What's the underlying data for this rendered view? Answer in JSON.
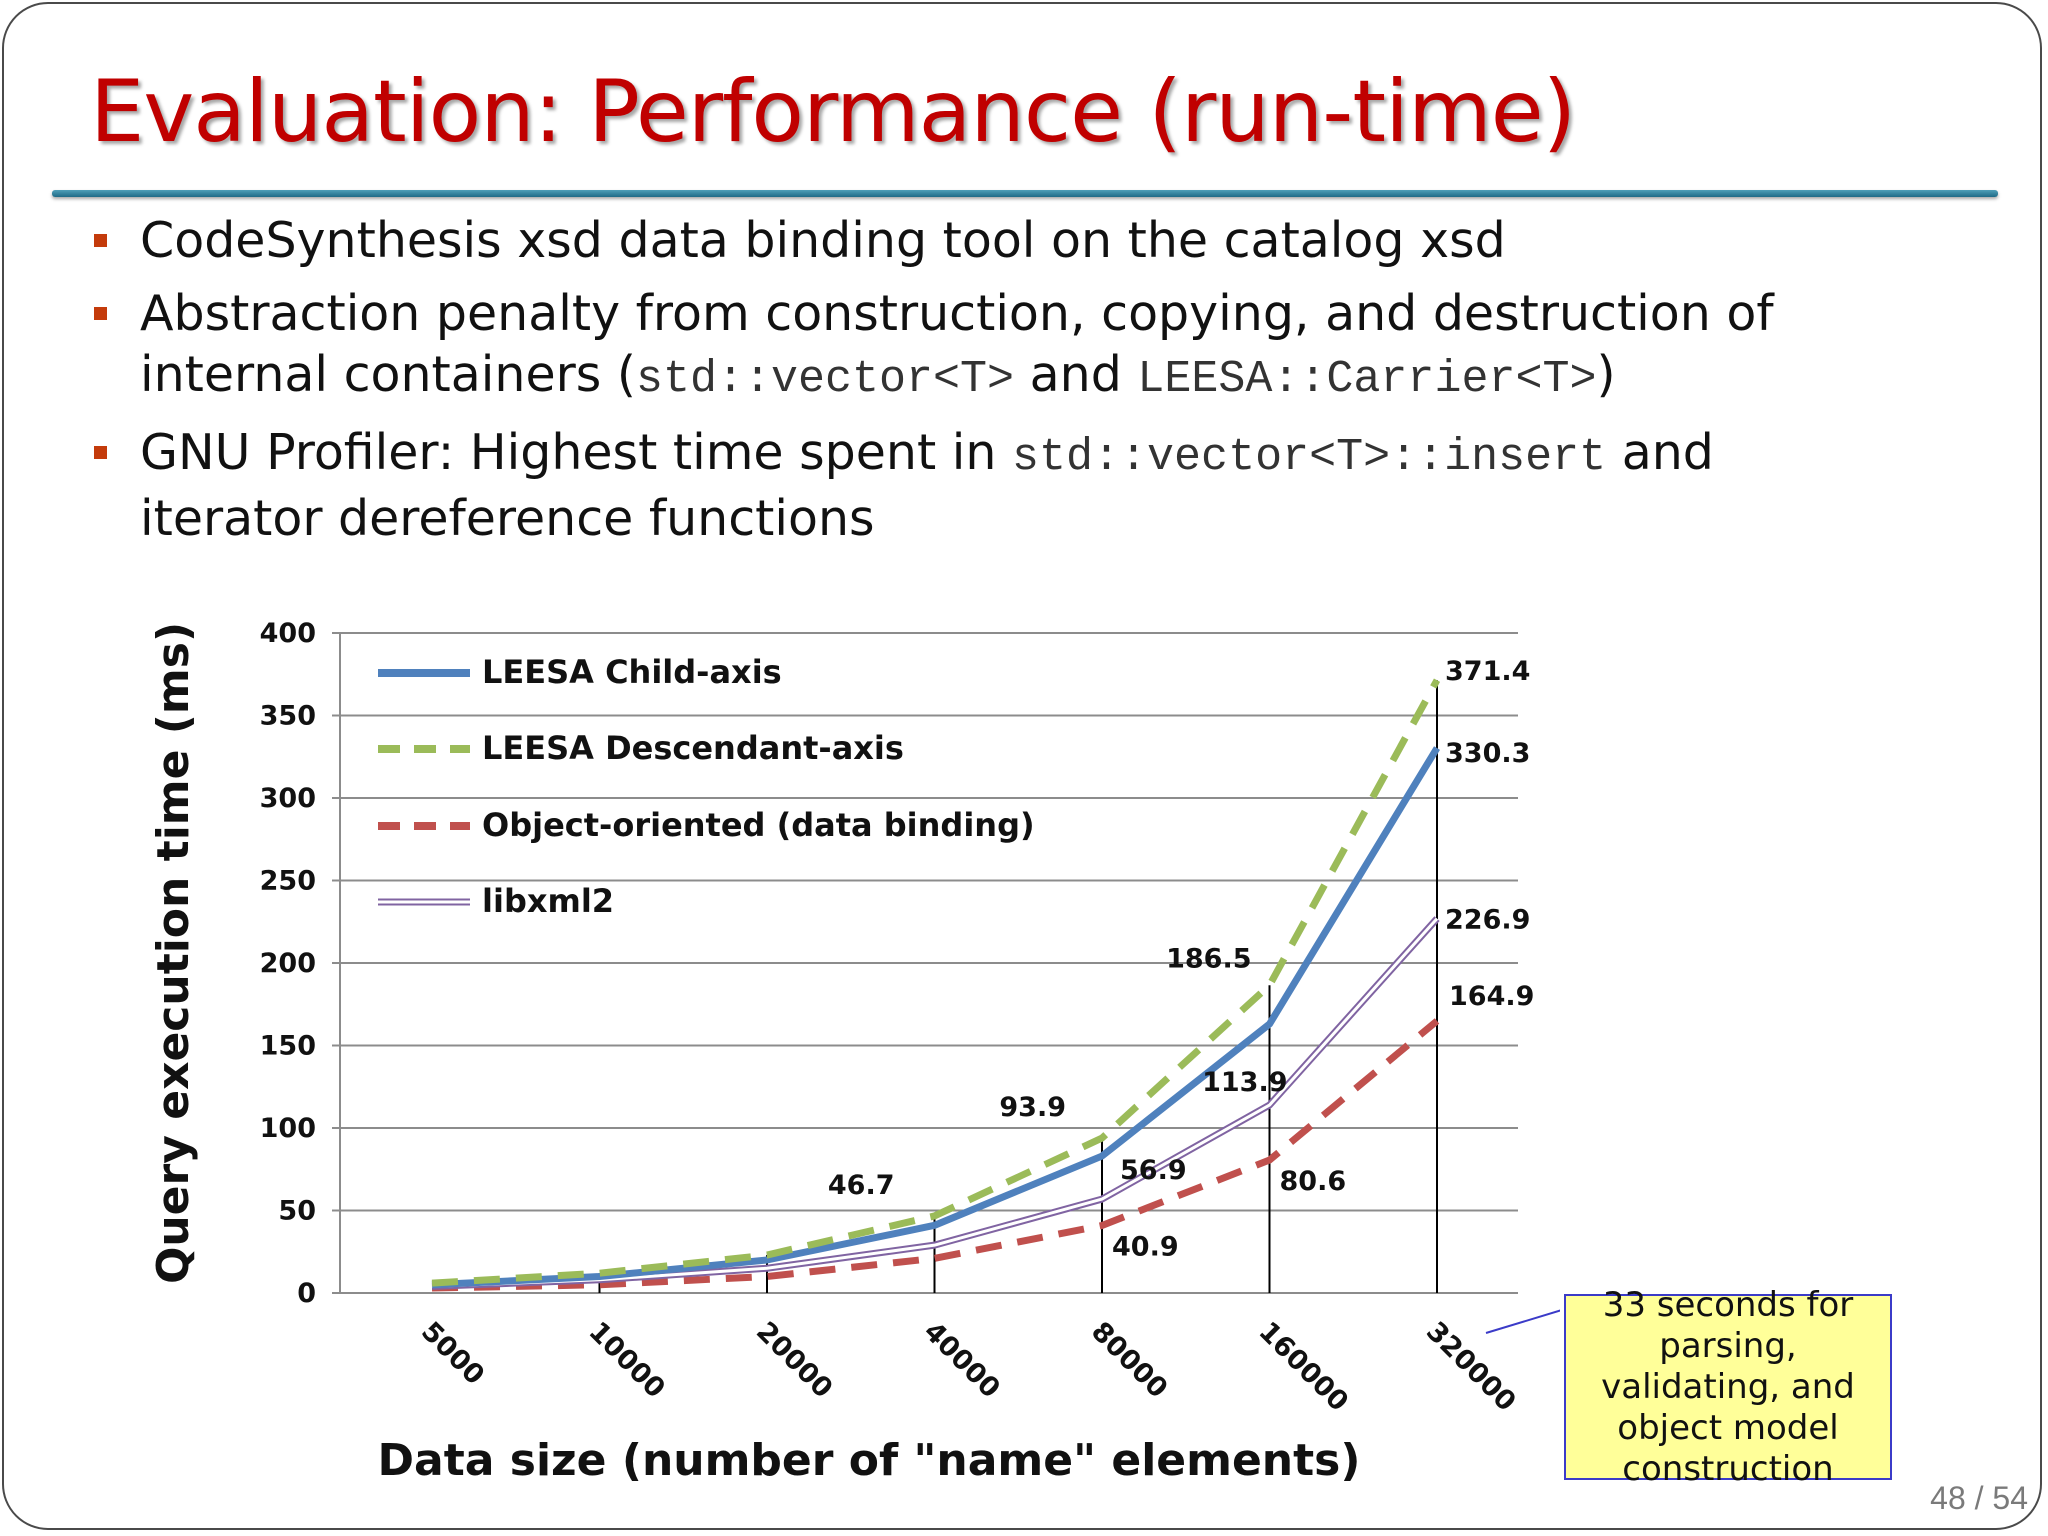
{
  "slide": {
    "title": "Evaluation: Performance (run-time)",
    "bullets": [
      {
        "text": "CodeSynthesis xsd data binding tool on the catalog xsd"
      },
      {
        "line1": "Abstraction penalty from construction, copying, and destruction of",
        "pre": "internal containers (",
        "code1": "std::vector<T>",
        "mid": " and ",
        "code2": "LEESA::Carrier<T>",
        "post": ")"
      },
      {
        "pre": "GNU Profiler: Highest time spent in ",
        "code": "std::vector<T>::insert",
        "post": " and",
        "line2": "iterator dereference functions"
      }
    ],
    "callout": "33 seconds for parsing, validating, and object model construction",
    "page_number": "48 / 54"
  },
  "chart_data": {
    "type": "line",
    "title": "",
    "xlabel": "Data size (number of \"name\" elements)",
    "ylabel": "Query execution time (ms)",
    "ylim": [
      0,
      400
    ],
    "yticks": [
      0,
      50,
      100,
      150,
      200,
      250,
      300,
      350,
      400
    ],
    "categories": [
      "5000",
      "10000",
      "20000",
      "40000",
      "80000",
      "160000",
      "320000"
    ],
    "grid": true,
    "legend_position": "top-left",
    "series": [
      {
        "name": "LEESA Child-axis",
        "color": "#4f81bd",
        "style": "solid",
        "values": [
          5,
          10,
          20,
          41,
          83,
          163,
          330.3
        ]
      },
      {
        "name": "LEESA Descendant-axis",
        "color": "#9bbb59",
        "style": "dashed",
        "values": [
          6,
          12,
          23,
          46.7,
          93.9,
          186.5,
          371.4
        ]
      },
      {
        "name": "Object-oriented (data binding)",
        "color": "#c0504d",
        "style": "dashed",
        "values": [
          3,
          5,
          10,
          21,
          40.9,
          80.6,
          164.9
        ]
      },
      {
        "name": "libxml2",
        "color": "#8064a2",
        "style": "double",
        "values": [
          4,
          8,
          15,
          29,
          56.9,
          113.9,
          226.9
        ]
      }
    ],
    "data_labels": [
      {
        "text": "46.7",
        "category": 3,
        "value": 46.7
      },
      {
        "text": "93.9",
        "category": 4,
        "value": 93.9
      },
      {
        "text": "56.9",
        "category": 4,
        "value": 56.9
      },
      {
        "text": "40.9",
        "category": 4,
        "value": 40.9
      },
      {
        "text": "186.5",
        "category": 5,
        "value": 186.5
      },
      {
        "text": "113.9",
        "category": 5,
        "value": 113.9
      },
      {
        "text": "80.6",
        "category": 5,
        "value": 80.6
      },
      {
        "text": "371.4",
        "category": 6,
        "value": 371.4
      },
      {
        "text": "330.3",
        "category": 6,
        "value": 330.3
      },
      {
        "text": "226.9",
        "category": 6,
        "value": 226.9
      },
      {
        "text": "164.9",
        "category": 6,
        "value": 164.9
      }
    ]
  }
}
